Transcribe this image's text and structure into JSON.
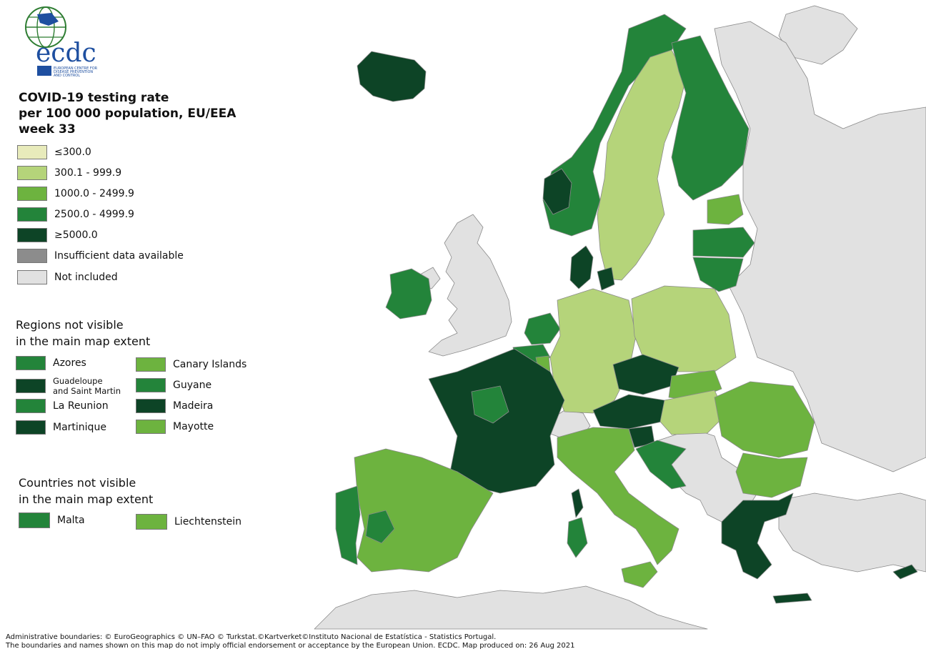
{
  "logo": {
    "wordmark": "ecdc",
    "subtitle_lines": [
      "EUROPEAN CENTRE FOR",
      "DISEASE PREVENTION",
      "AND CONTROL"
    ]
  },
  "title": {
    "line1": "COVID-19 testing rate",
    "line2": "per 100 000 population, EU/EEA",
    "line3": "week 33"
  },
  "legend": [
    {
      "label": "≤300.0",
      "color": "#e8ebbb"
    },
    {
      "label": "300.1 - 999.9",
      "color": "#b5d47a"
    },
    {
      "label": "1000.0 - 2499.9",
      "color": "#6db33f"
    },
    {
      "label": "2500.0 - 4999.9",
      "color": "#23843a"
    },
    {
      "label": "≥5000.0",
      "color": "#0d4426"
    },
    {
      "label": "Insufficient data available",
      "color": "#8c8c8c"
    },
    {
      "label": "Not included",
      "color": "#e1e1e1"
    }
  ],
  "regions": {
    "title_line1": "Regions not visible",
    "title_line2": "in the main map extent",
    "items": [
      {
        "label": "Azores",
        "color": "#23843a"
      },
      {
        "label": "Guadeloupe\nand Saint Martin",
        "color": "#0d4426"
      },
      {
        "label": "La Reunion",
        "color": "#23843a"
      },
      {
        "label": "Martinique",
        "color": "#0d4426"
      },
      {
        "label": "Canary Islands",
        "color": "#6db33f"
      },
      {
        "label": "Guyane",
        "color": "#23843a"
      },
      {
        "label": "Madeira",
        "color": "#0d4426"
      },
      {
        "label": "Mayotte",
        "color": "#6db33f"
      }
    ]
  },
  "countries": {
    "title_line1": "Countries not visible",
    "title_line2": "in the main map extent",
    "items": [
      {
        "label": "Malta",
        "color": "#23843a"
      },
      {
        "label": "Liechtenstein",
        "color": "#6db33f"
      }
    ]
  },
  "footer": {
    "line1": "Administrative boundaries: © EuroGeographics © UN–FAO © Turkstat.©Kartverket©Instituto Nacional de Estatística - Statistics Portugal.",
    "line2": "The boundaries and names shown on this map do not imply official endorsement or acceptance by the European Union. ECDC. Map produced on: 26 Aug 2021"
  },
  "map_colors": {
    "not_included": "#e1e1e1",
    "sea": "#ffffff",
    "border": "#8a8a8a"
  }
}
